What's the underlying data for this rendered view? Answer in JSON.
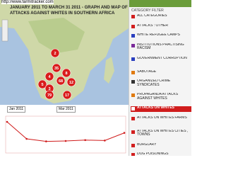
{
  "url": "http://www.farmitracker.com",
  "title_lines": [
    "JANUARY 2011 TO MARCH 31 2011 - GRAPH AND MAP OF",
    "ATTACKS AGAINST WHITES IN SOUTHERN AFRICA"
  ],
  "map_markers": [
    "2",
    "35",
    "8",
    "4",
    "68",
    "12",
    "5",
    "3",
    "79",
    "17"
  ],
  "date_range": {
    "from": "Jan 2011",
    "to": "Mar 2011"
  },
  "trend_chart": {
    "type": "line",
    "color": "#d01c1c",
    "values": [
      70,
      30,
      24,
      25,
      27,
      26,
      44
    ],
    "ylim": [
      0,
      80
    ]
  },
  "sidebar": {
    "header": "CATEGORY FILTER",
    "items": [
      {
        "label": "ALL CATEGORIES",
        "color": "#d21f1f"
      },
      {
        "label": "ATTACKS : OTHER",
        "color": "#d21f1f"
      },
      {
        "label": "WHITE REFUGEE CAMPS",
        "color": "#2a3fbf"
      },
      {
        "label": "INSTITUTIONS PRACTISING RACISM",
        "color": "#7a2a9a"
      },
      {
        "label": "GOVERNMENT CORRUPTION",
        "color": "#2a3fbf"
      },
      {
        "label": "SABOTAGE",
        "color": "#e07a10"
      },
      {
        "label": "ORGANIZED CRIME SYNDICATES",
        "color": "#333333"
      },
      {
        "label": "PROPAGANDA ATTACKS AGAINST WHITES",
        "color": "#e07a10"
      },
      {
        "label": "ATTACKS ON WHITES",
        "color": "#ffffff",
        "selected": true
      },
      {
        "label": "ATTACKS ON WHITES FARMS",
        "color": "#d21f1f"
      },
      {
        "label": "ATTACKS ON WHITES CITIES , TOWNS",
        "color": "#d21f1f"
      },
      {
        "label": "BURGLARY",
        "color": "#d21f1f"
      },
      {
        "label": "DOG POISONINGS",
        "color": "#d21f1f"
      }
    ]
  }
}
